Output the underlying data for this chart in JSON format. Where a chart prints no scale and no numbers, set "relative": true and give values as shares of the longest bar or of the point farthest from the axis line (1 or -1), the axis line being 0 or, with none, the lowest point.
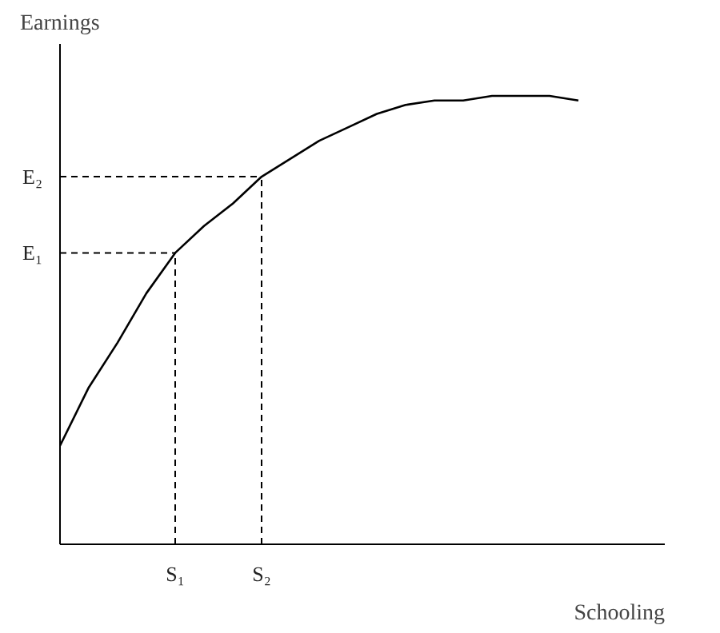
{
  "chart_data": {
    "type": "line",
    "xlabel": "Schooling",
    "ylabel": "Earnings",
    "relative": true,
    "categories": [
      null,
      null,
      null,
      null,
      "S₁",
      null,
      null,
      "S₂",
      null,
      null,
      null,
      null,
      null,
      null,
      null,
      null,
      null,
      null,
      null
    ],
    "series": [
      {
        "color": "#000000",
        "values": [
          0.22,
          0.35,
          0.45,
          0.56,
          0.65,
          0.71,
          0.76,
          0.82,
          0.86,
          0.9,
          0.93,
          0.96,
          0.98,
          0.99,
          0.99,
          1,
          1,
          1,
          0.99
        ]
      }
    ],
    "ref_lines": [
      {
        "axis": "y",
        "value": 0.65,
        "label": "E₁",
        "line_style": "dashed"
      },
      {
        "axis": "y",
        "value": 0.82,
        "label": "E₂",
        "line_style": "dashed"
      }
    ],
    "grid": false
  }
}
